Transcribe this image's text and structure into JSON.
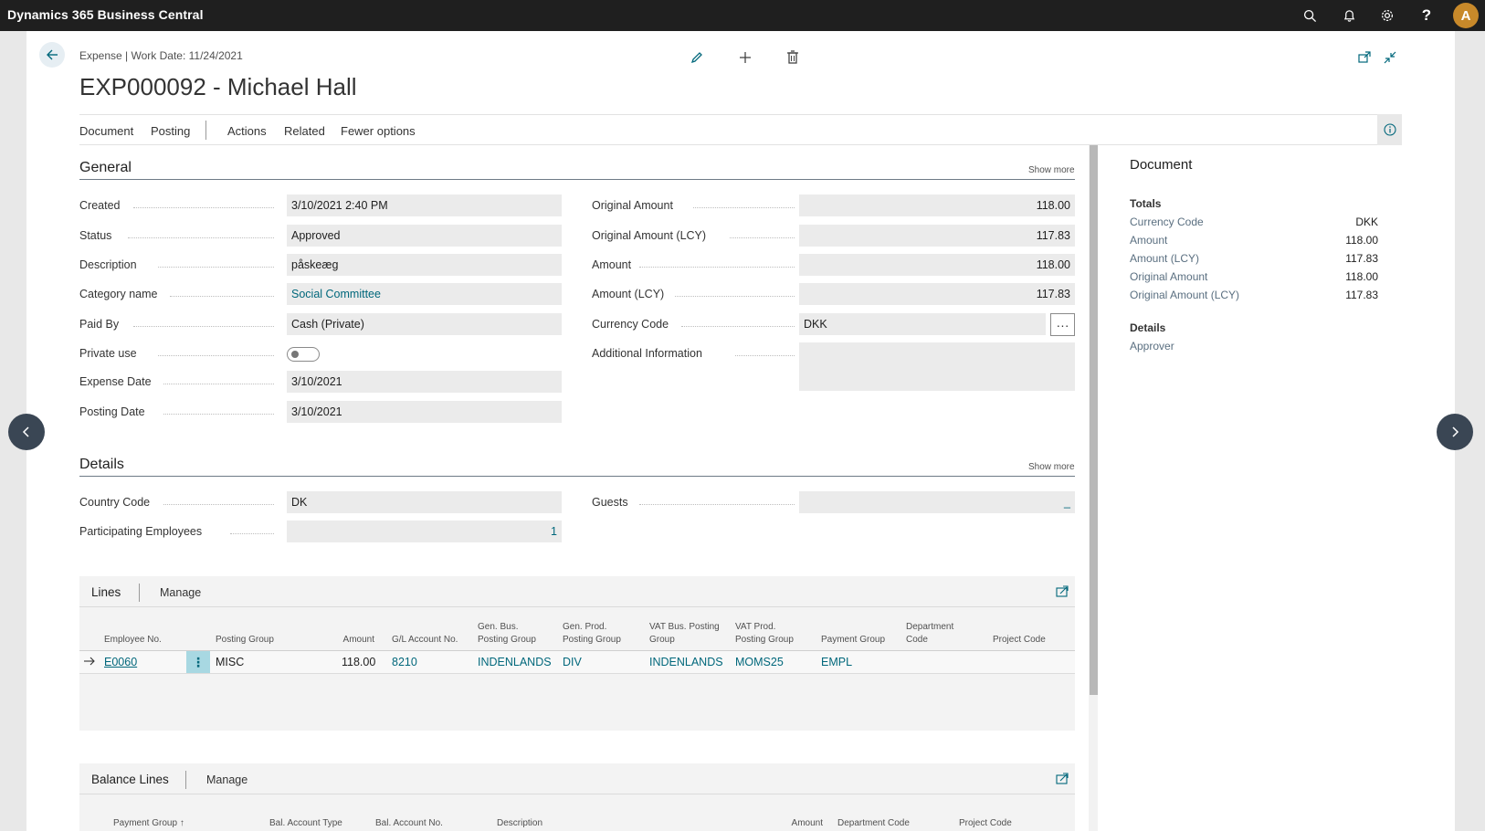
{
  "app": {
    "title": "Dynamics 365 Business Central",
    "avatar_initial": "A"
  },
  "page": {
    "breadcrumb": "Expense | Work Date: 11/24/2021",
    "title": "EXP000092 - Michael Hall"
  },
  "actions": [
    "Document",
    "Posting",
    "Actions",
    "Related",
    "Fewer options"
  ],
  "general": {
    "title": "General",
    "show_more": "Show more",
    "left": [
      {
        "label": "Created",
        "value": "3/10/2021 2:40 PM"
      },
      {
        "label": "Status",
        "value": "Approved"
      },
      {
        "label": "Description",
        "value": "påskeæg"
      },
      {
        "label": "Category name",
        "value": "Social Committee"
      },
      {
        "label": "Paid By",
        "value": "Cash (Private)"
      },
      {
        "label": "Private use",
        "value": ""
      },
      {
        "label": "Expense Date",
        "value": "3/10/2021"
      },
      {
        "label": "Posting Date",
        "value": "3/10/2021"
      }
    ],
    "right": [
      {
        "label": "Original Amount",
        "value": "118.00"
      },
      {
        "label": "Original Amount (LCY)",
        "value": "117.83"
      },
      {
        "label": "Amount",
        "value": "118.00"
      },
      {
        "label": "Amount (LCY)",
        "value": "117.83"
      },
      {
        "label": "Currency Code",
        "value": "DKK"
      },
      {
        "label": "Additional Information",
        "value": ""
      }
    ],
    "assist_button": "···"
  },
  "details": {
    "title": "Details",
    "show_more": "Show more",
    "left": [
      {
        "label": "Country Code",
        "value": "DK"
      },
      {
        "label": "Participating Employees",
        "value": "1"
      }
    ],
    "right": [
      {
        "label": "Guests",
        "value": "_"
      }
    ]
  },
  "lines": {
    "title": "Lines",
    "manage": "Manage",
    "columns": [
      {
        "l1": "Employee No.",
        "l2": ""
      },
      {
        "l1": "Posting Group",
        "l2": ""
      },
      {
        "l1": "Amount",
        "l2": ""
      },
      {
        "l1": "G/L Account No.",
        "l2": ""
      },
      {
        "l1": "Gen. Bus.",
        "l2": "Posting Group"
      },
      {
        "l1": "Gen. Prod.",
        "l2": "Posting Group"
      },
      {
        "l1": "VAT Bus. Posting",
        "l2": "Group"
      },
      {
        "l1": "VAT Prod.",
        "l2": "Posting Group"
      },
      {
        "l1": "Payment Group",
        "l2": ""
      },
      {
        "l1": "Department",
        "l2": "Code"
      },
      {
        "l1": "Project Code",
        "l2": ""
      }
    ],
    "rows": [
      [
        "E0060",
        "MISC",
        "118.00",
        "8210",
        "INDENLANDS",
        "DIV",
        "INDENLANDS",
        "MOMS25",
        "EMPL",
        "",
        ""
      ]
    ]
  },
  "balance_lines": {
    "title": "Balance Lines",
    "manage": "Manage",
    "columns": [
      "Payment Group ↑",
      "Bal. Account Type",
      "Bal. Account No.",
      "Description",
      "Amount",
      "Department Code",
      "Project Code"
    ]
  },
  "factbox": {
    "title": "Document",
    "totals": {
      "heading": "Totals",
      "rows": [
        {
          "label": "Currency Code",
          "value": "DKK"
        },
        {
          "label": "Amount",
          "value": "118.00"
        },
        {
          "label": "Amount (LCY)",
          "value": "117.83"
        },
        {
          "label": "Original Amount",
          "value": "118.00"
        },
        {
          "label": "Original Amount (LCY)",
          "value": "117.83"
        }
      ]
    },
    "details": {
      "heading": "Details",
      "rows": [
        {
          "label": "Approver",
          "value": ""
        }
      ]
    }
  },
  "colors": {
    "topbar": "#1f1f1f",
    "accent": "#00677b",
    "avatar": "#c8892a"
  }
}
